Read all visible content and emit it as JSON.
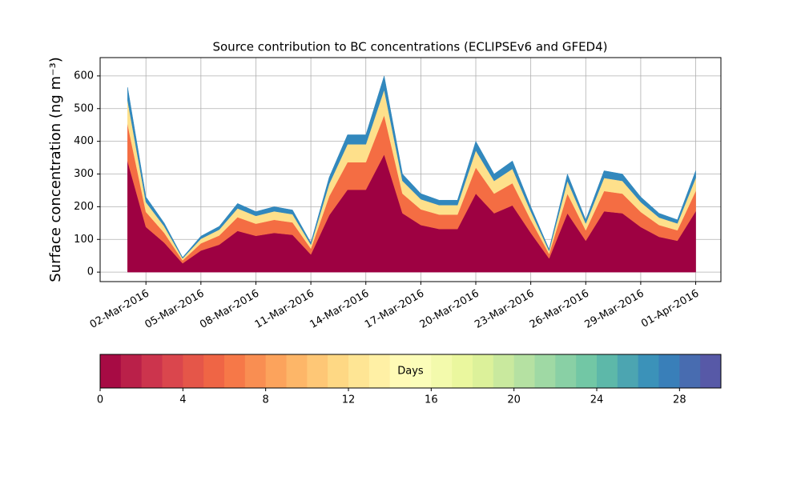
{
  "chart_data": {
    "type": "stackplot",
    "title": "Source contribution to BC concentrations (ECLIPSEv6 and GFED4)",
    "y_label": "Surface concentration (ng m⁻³)",
    "x": [
      "2016-03-01",
      "2016-03-02",
      "2016-03-03",
      "2016-03-04",
      "2016-03-05",
      "2016-03-06",
      "2016-03-07",
      "2016-03-08",
      "2016-03-09",
      "2016-03-10",
      "2016-03-11",
      "2016-03-12",
      "2016-03-13",
      "2016-03-14",
      "2016-03-15",
      "2016-03-16",
      "2016-03-17",
      "2016-03-18",
      "2016-03-19",
      "2016-03-20",
      "2016-03-21",
      "2016-03-22",
      "2016-03-23",
      "2016-03-24",
      "2016-03-25",
      "2016-03-26",
      "2016-03-27",
      "2016-03-28",
      "2016-03-29",
      "2016-03-30",
      "2016-03-31",
      "2016-04-01"
    ],
    "series": [
      {
        "color": "#9e0142",
        "values": [
          339,
          138,
          90,
          27,
          66,
          84,
          126,
          111,
          120,
          114,
          54,
          174,
          252,
          252,
          360,
          180,
          144,
          132,
          132,
          240,
          180,
          204,
          120,
          42,
          180,
          96,
          186,
          180,
          138,
          108,
          96,
          186
        ]
      },
      {
        "color": "#f46d43",
        "values": [
          113,
          46,
          30,
          9,
          22,
          28,
          42,
          37,
          40,
          38,
          18,
          58,
          84,
          84,
          120,
          60,
          48,
          44,
          44,
          80,
          60,
          68,
          40,
          14,
          60,
          32,
          62,
          60,
          46,
          36,
          32,
          62
        ]
      },
      {
        "color": "#fee08b",
        "values": [
          73,
          30,
          20,
          6,
          14,
          18,
          27,
          24,
          26,
          25,
          12,
          38,
          55,
          55,
          78,
          39,
          31,
          29,
          29,
          52,
          39,
          44,
          26,
          9,
          39,
          21,
          40,
          39,
          30,
          23,
          21,
          40
        ]
      },
      {
        "color": "#3288bd",
        "values": [
          40,
          16,
          10,
          3,
          8,
          10,
          15,
          13,
          14,
          13,
          6,
          20,
          29,
          29,
          42,
          21,
          17,
          15,
          15,
          28,
          21,
          24,
          14,
          5,
          21,
          11,
          22,
          21,
          16,
          13,
          11,
          22
        ]
      }
    ],
    "xlim": [
      "2016-02-28T12:00",
      "2016-04-02T09:00"
    ],
    "xticks": [
      {
        "value": "2016-03-02",
        "label": "02-Mar-2016"
      },
      {
        "value": "2016-03-05",
        "label": "05-Mar-2016"
      },
      {
        "value": "2016-03-08",
        "label": "08-Mar-2016"
      },
      {
        "value": "2016-03-11",
        "label": "11-Mar-2016"
      },
      {
        "value": "2016-03-14",
        "label": "14-Mar-2016"
      },
      {
        "value": "2016-03-17",
        "label": "17-Mar-2016"
      },
      {
        "value": "2016-03-20",
        "label": "20-Mar-2016"
      },
      {
        "value": "2016-03-23",
        "label": "23-Mar-2016"
      },
      {
        "value": "2016-03-26",
        "label": "26-Mar-2016"
      },
      {
        "value": "2016-03-29",
        "label": "29-Mar-2016"
      },
      {
        "value": "2016-04-01",
        "label": "01-Apr-2016"
      }
    ],
    "ylim": [
      -29,
      656
    ],
    "yticks": [
      0,
      100,
      200,
      300,
      400,
      500,
      600
    ],
    "grid": true,
    "colorbar": {
      "label": "Days",
      "cmap": [
        "#9e0142",
        "#d53e4f",
        "#f46d43",
        "#fdae61",
        "#fee08b",
        "#ffffbf",
        "#e6f598",
        "#abdda4",
        "#66c2a5",
        "#3288bd",
        "#5e4fa2"
      ],
      "lim": [
        0,
        30
      ],
      "levels": 30,
      "ticks": [
        0,
        4,
        8,
        12,
        16,
        20,
        24,
        28
      ]
    }
  }
}
